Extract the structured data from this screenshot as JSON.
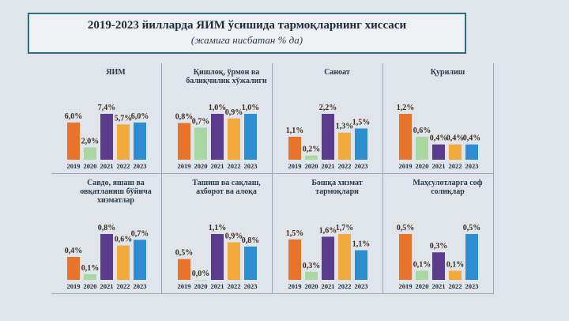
{
  "header": {
    "title": "2019-2023 йилларда ЯИМ ўсишида тармоқларнинг хиссаси",
    "subtitle": "(жамига нисбатан % да)"
  },
  "chart_data": [
    {
      "type": "bar",
      "title": "ЯИМ",
      "categories": [
        "2019",
        "2020",
        "2021",
        "2022",
        "2023"
      ],
      "values": [
        6.0,
        2.0,
        7.4,
        5.7,
        6.0
      ],
      "value_labels": [
        "6,0%",
        "2,0%",
        "7,4%",
        "5,7%",
        "6,0%"
      ],
      "colors": [
        "#e8742c",
        "#a9d7a2",
        "#5b3c8c",
        "#f3aa3c",
        "#2e8fd0"
      ]
    },
    {
      "type": "bar",
      "title": "Қишлоқ, ўрмон ва балиқчилик хўжалиги",
      "categories": [
        "2019",
        "2020",
        "2021",
        "2022",
        "2023"
      ],
      "values": [
        0.8,
        0.7,
        1.0,
        0.9,
        1.0
      ],
      "value_labels": [
        "0,8%",
        "0,7%",
        "1,0%",
        "0,9%",
        "1,0%"
      ],
      "colors": [
        "#e8742c",
        "#a9d7a2",
        "#5b3c8c",
        "#f3aa3c",
        "#2e8fd0"
      ]
    },
    {
      "type": "bar",
      "title": "Саноат",
      "categories": [
        "2019",
        "2020",
        "2021",
        "2022",
        "2023"
      ],
      "values": [
        1.1,
        0.2,
        2.2,
        1.3,
        1.5
      ],
      "value_labels": [
        "1,1%",
        "0,2%",
        "2,2%",
        "1,3%",
        "1,5%"
      ],
      "colors": [
        "#e8742c",
        "#a9d7a2",
        "#5b3c8c",
        "#f3aa3c",
        "#2e8fd0"
      ]
    },
    {
      "type": "bar",
      "title": "Қурилиш",
      "categories": [
        "2019",
        "2020",
        "2021",
        "2022",
        "2023"
      ],
      "values": [
        1.2,
        0.6,
        0.4,
        0.4,
        0.4
      ],
      "value_labels": [
        "1,2%",
        "0,6%",
        "0,4%",
        "0,4%",
        "0,4%"
      ],
      "colors": [
        "#e8742c",
        "#a9d7a2",
        "#5b3c8c",
        "#f3aa3c",
        "#2e8fd0"
      ]
    },
    {
      "type": "bar",
      "title": "Савдо, яшаш ва овқатланиш бўйича хизматлар",
      "categories": [
        "2019",
        "2020",
        "2021",
        "2022",
        "2023"
      ],
      "values": [
        0.4,
        0.1,
        0.8,
        0.6,
        0.7
      ],
      "value_labels": [
        "0,4%",
        "0,1%",
        "0,8%",
        "0,6%",
        "0,7%"
      ],
      "colors": [
        "#e8742c",
        "#a9d7a2",
        "#5b3c8c",
        "#f3aa3c",
        "#2e8fd0"
      ]
    },
    {
      "type": "bar",
      "title": "Ташиш ва сақлаш, ахборот ва алоқа",
      "categories": [
        "2019",
        "2020",
        "2021",
        "2022",
        "2023"
      ],
      "values": [
        0.5,
        0.0,
        1.1,
        0.9,
        0.8
      ],
      "value_labels": [
        "0,5%",
        "0,0%",
        "1,1%",
        "0,9%",
        "0,8%"
      ],
      "colors": [
        "#e8742c",
        "#a9d7a2",
        "#5b3c8c",
        "#f3aa3c",
        "#2e8fd0"
      ]
    },
    {
      "type": "bar",
      "title": "Бошқа хизмат тармоқлари",
      "categories": [
        "2019",
        "2020",
        "2021",
        "2022",
        "2023"
      ],
      "values": [
        1.5,
        0.3,
        1.6,
        1.7,
        1.1
      ],
      "value_labels": [
        "1,5%",
        "0,3%",
        "1,6%",
        "1,7%",
        "1,1%"
      ],
      "colors": [
        "#e8742c",
        "#a9d7a2",
        "#5b3c8c",
        "#f3aa3c",
        "#2e8fd0"
      ]
    },
    {
      "type": "bar",
      "title": "Маҳсулотларга соф солиқлар",
      "categories": [
        "2019",
        "2020",
        "2021",
        "2022",
        "2023"
      ],
      "values": [
        0.5,
        0.1,
        0.3,
        0.1,
        0.5
      ],
      "value_labels": [
        "0,5%",
        "0,1%",
        "0,3%",
        "0,1%",
        "0,5%"
      ],
      "colors": [
        "#e8742c",
        "#a9d7a2",
        "#5b3c8c",
        "#f3aa3c",
        "#2e8fd0"
      ]
    }
  ]
}
